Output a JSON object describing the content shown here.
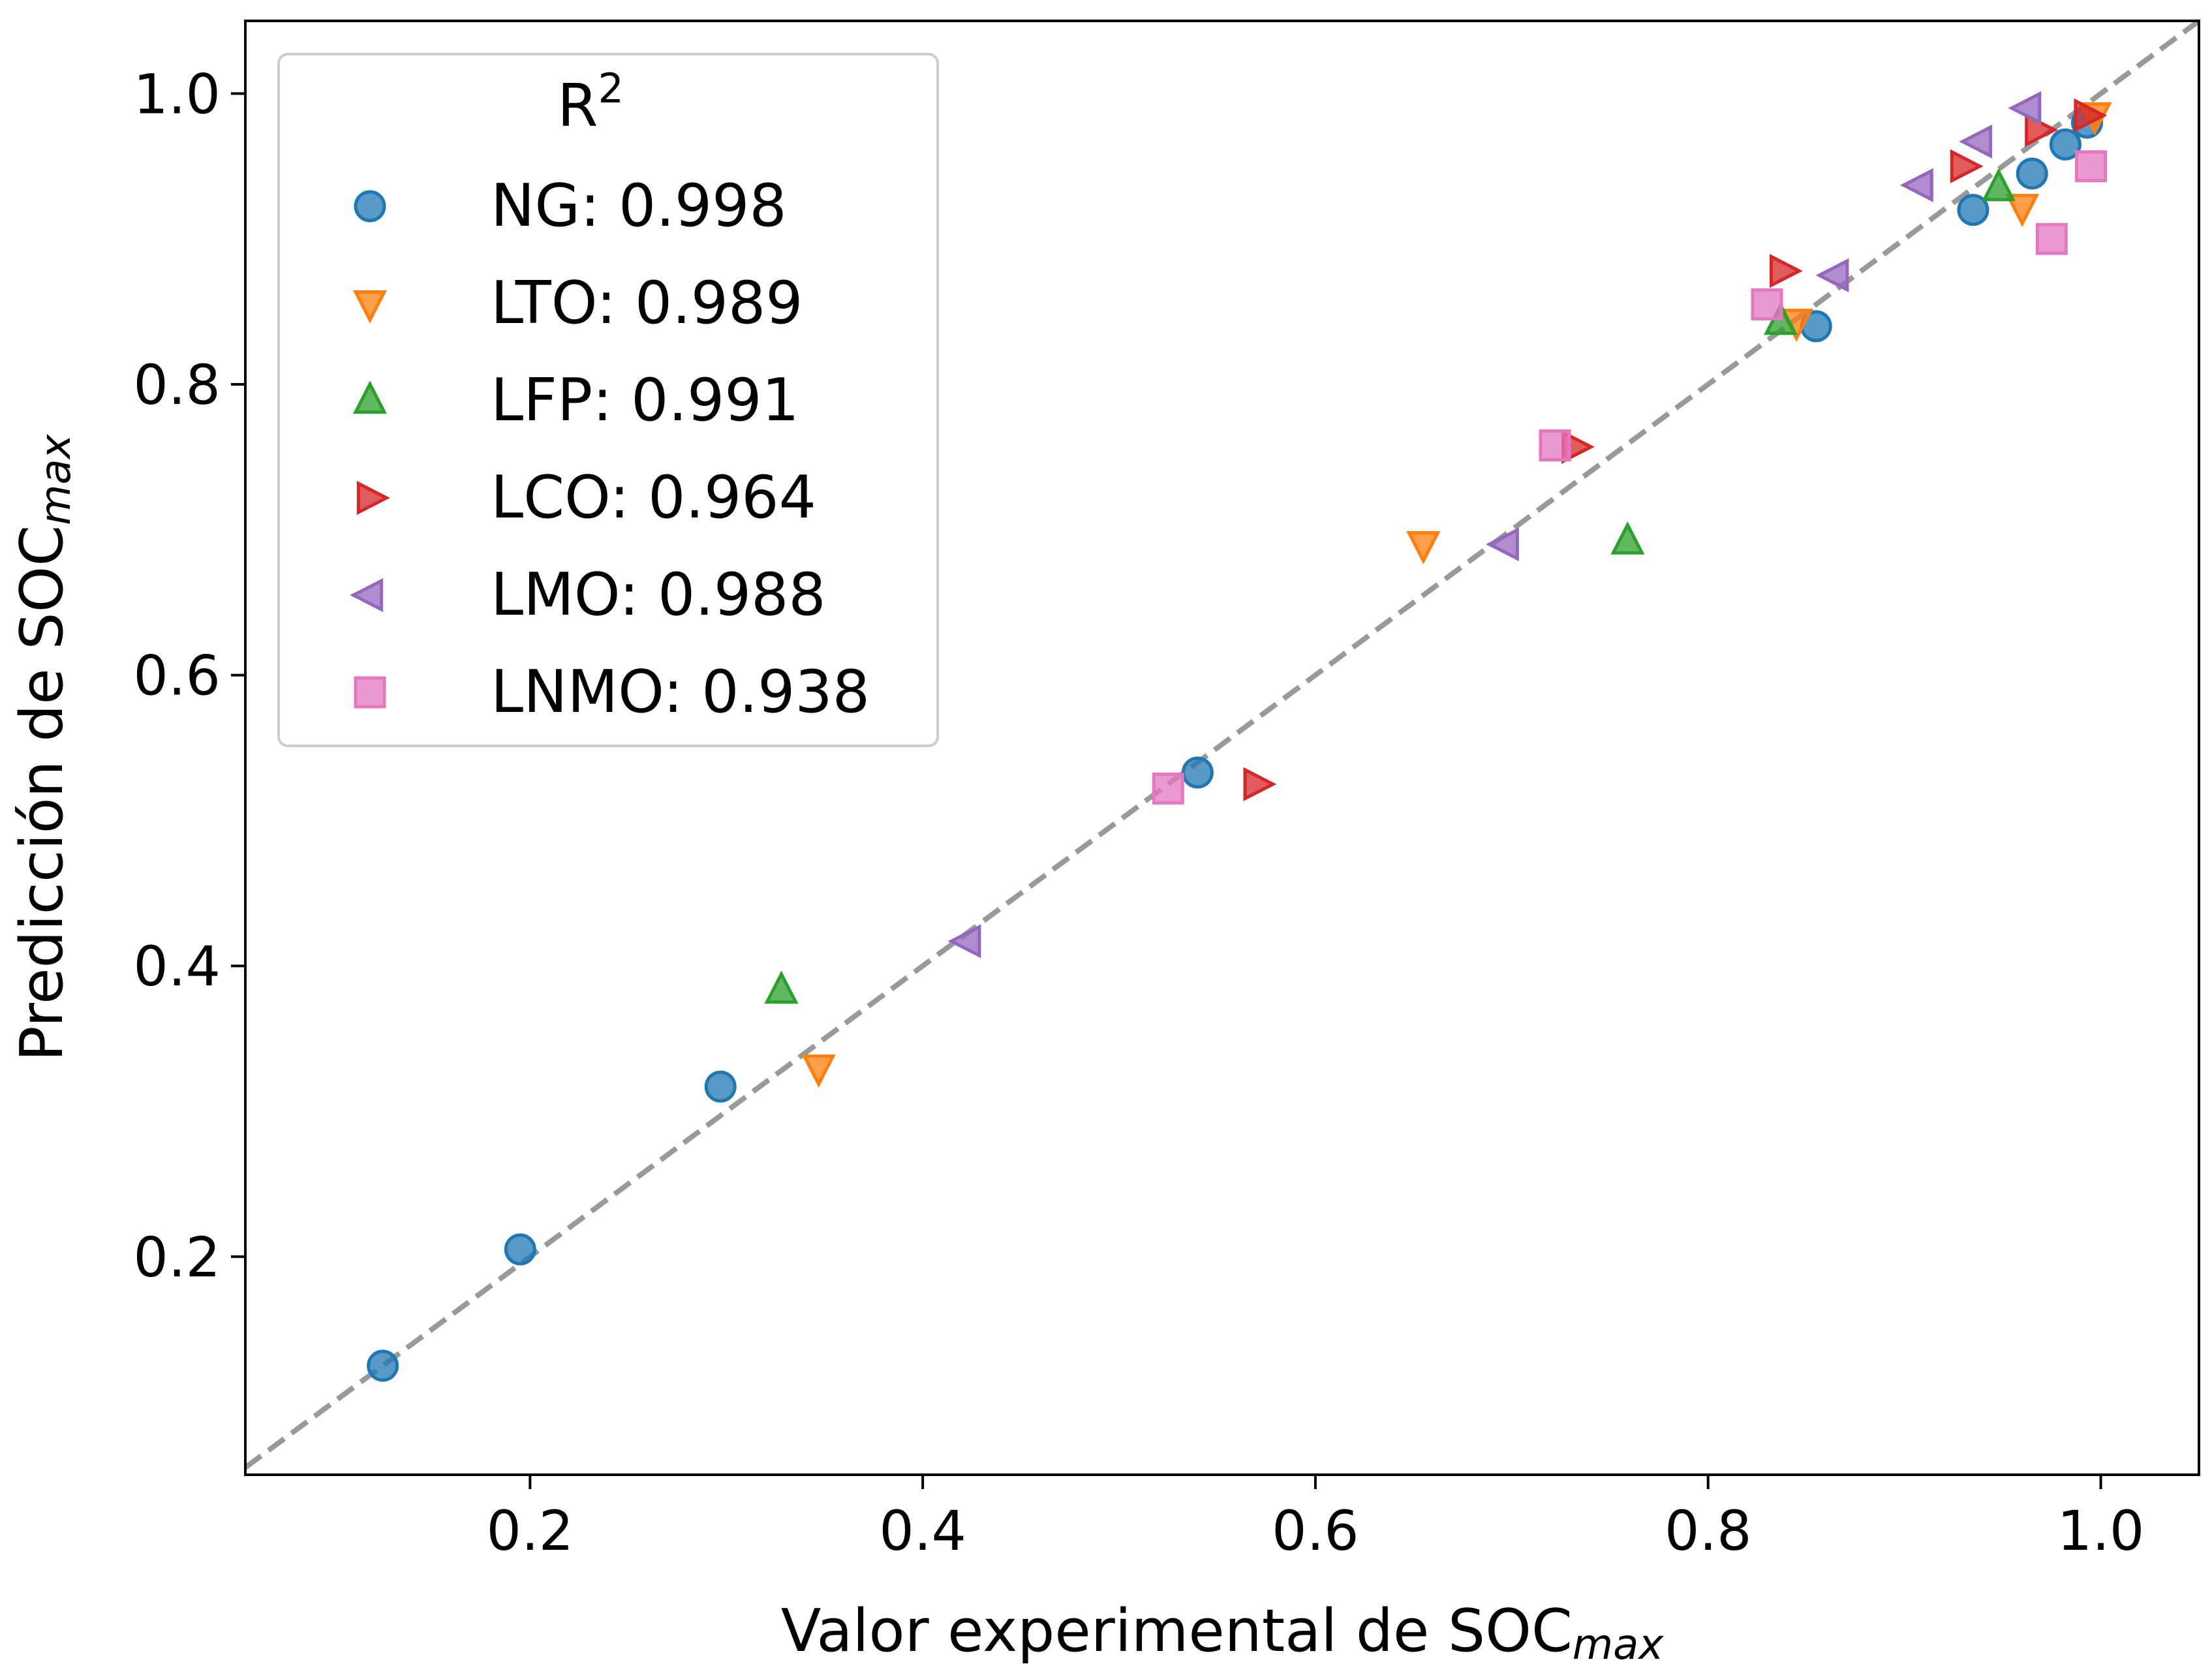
{
  "chart_data": {
    "type": "scatter",
    "title": "",
    "xlabel": {
      "prefix": "Valor experimental de SOC",
      "subscript": "max"
    },
    "ylabel": {
      "prefix": "Predicción de SOC",
      "subscript": "max"
    },
    "xlim": [
      0.055,
      1.05
    ],
    "ylim": [
      0.05,
      1.05
    ],
    "xticks": [
      "0.2",
      "0.4",
      "0.6",
      "0.8",
      "1.0"
    ],
    "yticks": [
      "0.2",
      "0.4",
      "0.6",
      "0.8",
      "1.0"
    ],
    "grid": false,
    "legend": {
      "title": "R",
      "title_superscript": "2",
      "placement": "top-left"
    },
    "reference_line": {
      "style": "dashed",
      "color": "#999999",
      "from": [
        0.055,
        0.055
      ],
      "to": [
        1.05,
        1.05
      ]
    },
    "series": [
      {
        "name": "NG: 0.998",
        "marker": "circle",
        "color": "#1f77b4",
        "points": [
          [
            0.125,
            0.125
          ],
          [
            0.195,
            0.205
          ],
          [
            0.297,
            0.317
          ],
          [
            0.54,
            0.533
          ],
          [
            0.855,
            0.84
          ],
          [
            0.935,
            0.92
          ],
          [
            0.965,
            0.945
          ],
          [
            0.982,
            0.965
          ],
          [
            0.993,
            0.98
          ]
        ]
      },
      {
        "name": "LTO: 0.989",
        "marker": "triangle-down",
        "color": "#ff7f0e",
        "points": [
          [
            0.347,
            0.33
          ],
          [
            0.655,
            0.69
          ],
          [
            0.845,
            0.843
          ],
          [
            0.96,
            0.922
          ],
          [
            0.997,
            0.985
          ]
        ]
      },
      {
        "name": "LFP: 0.991",
        "marker": "triangle-up",
        "color": "#2ca02c",
        "points": [
          [
            0.328,
            0.383
          ],
          [
            0.759,
            0.692
          ],
          [
            0.837,
            0.843
          ],
          [
            0.948,
            0.935
          ]
        ]
      },
      {
        "name": "LCO: 0.964",
        "marker": "triangle-right",
        "color": "#d62728",
        "points": [
          [
            0.57,
            0.525
          ],
          [
            0.732,
            0.757
          ],
          [
            0.838,
            0.878
          ],
          [
            0.93,
            0.95
          ],
          [
            0.968,
            0.975
          ],
          [
            0.993,
            0.985
          ]
        ]
      },
      {
        "name": "LMO: 0.988",
        "marker": "triangle-left",
        "color": "#9467bd",
        "points": [
          [
            0.423,
            0.417
          ],
          [
            0.697,
            0.69
          ],
          [
            0.865,
            0.875
          ],
          [
            0.908,
            0.937
          ],
          [
            0.938,
            0.967
          ],
          [
            0.963,
            0.99
          ]
        ]
      },
      {
        "name": "LNMO: 0.938",
        "marker": "square",
        "color": "#e377c2",
        "points": [
          [
            0.525,
            0.522
          ],
          [
            0.722,
            0.758
          ],
          [
            0.83,
            0.855
          ],
          [
            0.975,
            0.9
          ],
          [
            0.995,
            0.95
          ]
        ]
      }
    ]
  }
}
